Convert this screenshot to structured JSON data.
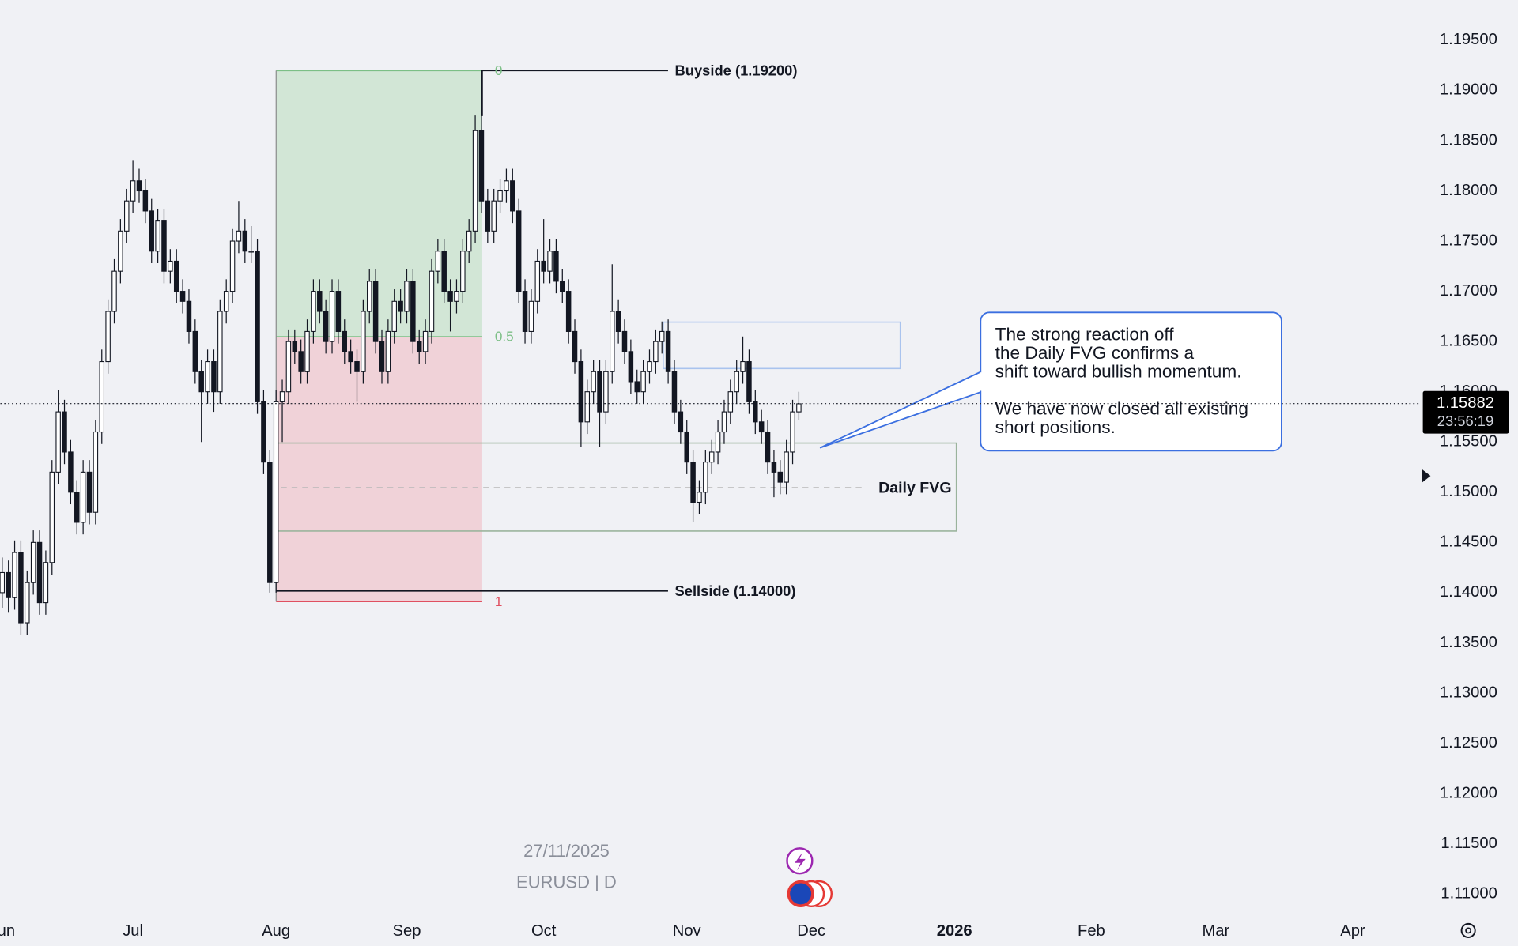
{
  "chart_data": {
    "type": "candlestick",
    "symbol": "EURUSD | D",
    "date": "27/11/2025",
    "ylim": [
      1.108,
      1.199
    ],
    "xlim": [
      -0.3,
      226.7
    ],
    "yticks": [
      {
        "value": 1.11,
        "label": "1.11000"
      },
      {
        "value": 1.115,
        "label": "1.11500"
      },
      {
        "value": 1.12,
        "label": "1.12000"
      },
      {
        "value": 1.125,
        "label": "1.12500"
      },
      {
        "value": 1.13,
        "label": "1.13000"
      },
      {
        "value": 1.135,
        "label": "1.13500"
      },
      {
        "value": 1.14,
        "label": "1.14000"
      },
      {
        "value": 1.145,
        "label": "1.14500"
      },
      {
        "value": 1.15,
        "label": "1.15000"
      },
      {
        "value": 1.155,
        "label": "1.15500"
      },
      {
        "value": 1.16,
        "label": "1.16000"
      },
      {
        "value": 1.165,
        "label": "1.16500"
      },
      {
        "value": 1.17,
        "label": "1.17000"
      },
      {
        "value": 1.175,
        "label": "1.17500"
      },
      {
        "value": 1.18,
        "label": "1.18000"
      },
      {
        "value": 1.185,
        "label": "1.18500"
      },
      {
        "value": 1.19,
        "label": "1.19000"
      },
      {
        "value": 1.195,
        "label": "1.19500"
      }
    ],
    "xticks": [
      {
        "value": 0,
        "label": "Jun"
      },
      {
        "value": 21,
        "label": "Jul"
      },
      {
        "value": 44,
        "label": "Aug"
      },
      {
        "value": 65,
        "label": "Sep"
      },
      {
        "value": 87,
        "label": "Oct"
      },
      {
        "value": 110,
        "label": "Nov"
      },
      {
        "value": 130,
        "label": "Dec"
      },
      {
        "value": 153,
        "label": "2026"
      },
      {
        "value": 175,
        "label": "Feb"
      },
      {
        "value": 195,
        "label": "Mar"
      },
      {
        "value": 217,
        "label": "Apr"
      }
    ],
    "up_color": "#ffffff",
    "down_color": "#131722",
    "last_price": 1.15882,
    "countdown": "23:56:19",
    "buyside_label": "Buyside (1.19200)",
    "sellside_label": "Sellside (1.14000)",
    "fib_labels": [
      "0",
      "0.5",
      "1"
    ],
    "fvg_label": "Daily FVG",
    "callout": [
      [
        "The strong reaction off",
        "the Daily FVG confirms a",
        "shift toward bullish momentum."
      ],
      [
        "We have now closed all existing",
        "short positions."
      ]
    ],
    "ohlc": [
      [
        1.14,
        1.1435,
        1.1385,
        1.142
      ],
      [
        1.142,
        1.1432,
        1.138,
        1.1395
      ],
      [
        1.1395,
        1.1452,
        1.1383,
        1.144
      ],
      [
        1.144,
        1.1452,
        1.1358,
        1.137
      ],
      [
        1.137,
        1.1422,
        1.1358,
        1.141
      ],
      [
        1.141,
        1.1462,
        1.1398,
        1.145
      ],
      [
        1.145,
        1.1462,
        1.1378,
        1.139
      ],
      [
        1.139,
        1.1442,
        1.1378,
        1.143
      ],
      [
        1.143,
        1.1532,
        1.1418,
        1.152
      ],
      [
        1.152,
        1.1602,
        1.1508,
        1.158
      ],
      [
        1.158,
        1.1592,
        1.1528,
        1.154
      ],
      [
        1.154,
        1.1552,
        1.1488,
        1.15
      ],
      [
        1.15,
        1.1512,
        1.1458,
        1.147
      ],
      [
        1.147,
        1.1532,
        1.1458,
        1.152
      ],
      [
        1.152,
        1.1532,
        1.1468,
        1.148
      ],
      [
        1.148,
        1.1572,
        1.1468,
        1.156
      ],
      [
        1.156,
        1.1642,
        1.1548,
        1.163
      ],
      [
        1.163,
        1.1692,
        1.1618,
        1.168
      ],
      [
        1.168,
        1.1732,
        1.1668,
        1.172
      ],
      [
        1.172,
        1.1772,
        1.1708,
        1.176
      ],
      [
        1.176,
        1.1802,
        1.1748,
        1.179
      ],
      [
        1.179,
        1.183,
        1.1778,
        1.181
      ],
      [
        1.181,
        1.1822,
        1.1788,
        1.18
      ],
      [
        1.18,
        1.1812,
        1.1768,
        1.178
      ],
      [
        1.178,
        1.1792,
        1.1728,
        1.174
      ],
      [
        1.174,
        1.1782,
        1.1728,
        1.177
      ],
      [
        1.177,
        1.1782,
        1.1708,
        1.172
      ],
      [
        1.172,
        1.1742,
        1.1708,
        1.173
      ],
      [
        1.173,
        1.1742,
        1.1688,
        1.17
      ],
      [
        1.17,
        1.1712,
        1.1678,
        1.169
      ],
      [
        1.169,
        1.1702,
        1.1648,
        1.166
      ],
      [
        1.166,
        1.1672,
        1.1608,
        1.162
      ],
      [
        1.162,
        1.1632,
        1.155,
        1.16
      ],
      [
        1.16,
        1.1642,
        1.1588,
        1.163
      ],
      [
        1.163,
        1.1642,
        1.158,
        1.16
      ],
      [
        1.16,
        1.1692,
        1.1588,
        1.168
      ],
      [
        1.168,
        1.1712,
        1.1668,
        1.17
      ],
      [
        1.17,
        1.1762,
        1.1688,
        1.175
      ],
      [
        1.175,
        1.179,
        1.1738,
        1.176
      ],
      [
        1.176,
        1.1772,
        1.1728,
        1.174
      ],
      [
        1.174,
        1.1765,
        1.1728,
        1.174
      ],
      [
        1.174,
        1.1752,
        1.1578,
        1.159
      ],
      [
        1.159,
        1.1602,
        1.1518,
        1.153
      ],
      [
        1.153,
        1.1542,
        1.14,
        1.141
      ],
      [
        1.141,
        1.1602,
        1.14,
        1.159
      ],
      [
        1.159,
        1.1612,
        1.155,
        1.16
      ],
      [
        1.16,
        1.1662,
        1.1588,
        1.165
      ],
      [
        1.165,
        1.1662,
        1.1628,
        1.164
      ],
      [
        1.164,
        1.1652,
        1.1608,
        1.162
      ],
      [
        1.162,
        1.1672,
        1.1608,
        1.166
      ],
      [
        1.166,
        1.1712,
        1.1648,
        1.17
      ],
      [
        1.17,
        1.1712,
        1.1668,
        1.168
      ],
      [
        1.168,
        1.1692,
        1.1638,
        1.165
      ],
      [
        1.165,
        1.1712,
        1.1638,
        1.17
      ],
      [
        1.17,
        1.1712,
        1.1648,
        1.166
      ],
      [
        1.166,
        1.1672,
        1.1628,
        1.164
      ],
      [
        1.164,
        1.1652,
        1.1618,
        1.163
      ],
      [
        1.163,
        1.1642,
        1.159,
        1.162
      ],
      [
        1.162,
        1.1692,
        1.1608,
        1.168
      ],
      [
        1.168,
        1.1722,
        1.1668,
        1.171
      ],
      [
        1.171,
        1.1722,
        1.1638,
        1.165
      ],
      [
        1.165,
        1.1662,
        1.1608,
        1.162
      ],
      [
        1.162,
        1.1672,
        1.1608,
        1.166
      ],
      [
        1.166,
        1.1702,
        1.1648,
        1.169
      ],
      [
        1.169,
        1.1702,
        1.1668,
        1.168
      ],
      [
        1.168,
        1.1722,
        1.1668,
        1.171
      ],
      [
        1.171,
        1.1722,
        1.1638,
        1.165
      ],
      [
        1.165,
        1.1662,
        1.1628,
        1.164
      ],
      [
        1.164,
        1.1672,
        1.1628,
        1.166
      ],
      [
        1.166,
        1.1732,
        1.1648,
        1.172
      ],
      [
        1.172,
        1.1752,
        1.1708,
        1.174
      ],
      [
        1.174,
        1.1752,
        1.1688,
        1.17
      ],
      [
        1.17,
        1.1712,
        1.166,
        1.169
      ],
      [
        1.169,
        1.1712,
        1.1678,
        1.17
      ],
      [
        1.17,
        1.1752,
        1.1688,
        1.174
      ],
      [
        1.174,
        1.1772,
        1.1728,
        1.176
      ],
      [
        1.176,
        1.1875,
        1.1748,
        1.186
      ],
      [
        1.186,
        1.192,
        1.1778,
        1.179
      ],
      [
        1.179,
        1.1802,
        1.1748,
        1.176
      ],
      [
        1.176,
        1.1802,
        1.1748,
        1.179
      ],
      [
        1.179,
        1.1812,
        1.1778,
        1.18
      ],
      [
        1.18,
        1.1822,
        1.1788,
        1.181
      ],
      [
        1.181,
        1.1822,
        1.1768,
        1.178
      ],
      [
        1.178,
        1.1792,
        1.1688,
        1.17
      ],
      [
        1.17,
        1.1712,
        1.1648,
        1.166
      ],
      [
        1.166,
        1.1702,
        1.1648,
        1.169
      ],
      [
        1.169,
        1.1742,
        1.1678,
        1.173
      ],
      [
        1.173,
        1.1772,
        1.1708,
        1.172
      ],
      [
        1.172,
        1.1752,
        1.1708,
        1.174
      ],
      [
        1.174,
        1.1752,
        1.1698,
        1.171
      ],
      [
        1.171,
        1.1722,
        1.1688,
        1.17
      ],
      [
        1.17,
        1.1712,
        1.1648,
        1.166
      ],
      [
        1.166,
        1.1672,
        1.1618,
        1.163
      ],
      [
        1.163,
        1.1642,
        1.1545,
        1.157
      ],
      [
        1.157,
        1.1612,
        1.1558,
        1.16
      ],
      [
        1.16,
        1.1632,
        1.1588,
        1.162
      ],
      [
        1.162,
        1.1632,
        1.1545,
        1.158
      ],
      [
        1.158,
        1.1632,
        1.1568,
        1.162
      ],
      [
        1.162,
        1.1727,
        1.1608,
        1.168
      ],
      [
        1.168,
        1.1692,
        1.1648,
        1.166
      ],
      [
        1.166,
        1.1672,
        1.1628,
        1.164
      ],
      [
        1.164,
        1.1652,
        1.1598,
        1.161
      ],
      [
        1.161,
        1.1622,
        1.1588,
        1.16
      ],
      [
        1.16,
        1.1632,
        1.1588,
        1.162
      ],
      [
        1.162,
        1.1642,
        1.1608,
        1.163
      ],
      [
        1.163,
        1.1662,
        1.1618,
        1.165
      ],
      [
        1.165,
        1.167,
        1.1638,
        1.166
      ],
      [
        1.166,
        1.1672,
        1.1608,
        1.162
      ],
      [
        1.162,
        1.1632,
        1.1568,
        1.158
      ],
      [
        1.158,
        1.1592,
        1.1548,
        1.156
      ],
      [
        1.156,
        1.1572,
        1.1518,
        1.153
      ],
      [
        1.153,
        1.1542,
        1.147,
        1.149
      ],
      [
        1.149,
        1.1512,
        1.1478,
        1.15
      ],
      [
        1.15,
        1.1542,
        1.1488,
        1.153
      ],
      [
        1.153,
        1.1552,
        1.1518,
        1.154
      ],
      [
        1.154,
        1.1572,
        1.1528,
        1.156
      ],
      [
        1.156,
        1.1592,
        1.1548,
        1.158
      ],
      [
        1.158,
        1.1612,
        1.1568,
        1.16
      ],
      [
        1.16,
        1.1632,
        1.1588,
        1.162
      ],
      [
        1.162,
        1.1655,
        1.1608,
        1.163
      ],
      [
        1.163,
        1.1642,
        1.1578,
        1.159
      ],
      [
        1.159,
        1.1602,
        1.1558,
        1.157
      ],
      [
        1.157,
        1.1582,
        1.1548,
        1.156
      ],
      [
        1.156,
        1.1572,
        1.1518,
        1.153
      ],
      [
        1.153,
        1.1542,
        1.1495,
        1.152
      ],
      [
        1.152,
        1.1532,
        1.1498,
        1.151
      ],
      [
        1.151,
        1.1552,
        1.1498,
        1.154
      ],
      [
        1.154,
        1.1592,
        1.1528,
        1.158
      ],
      [
        1.158,
        1.16,
        1.1572,
        1.1588
      ]
    ]
  }
}
